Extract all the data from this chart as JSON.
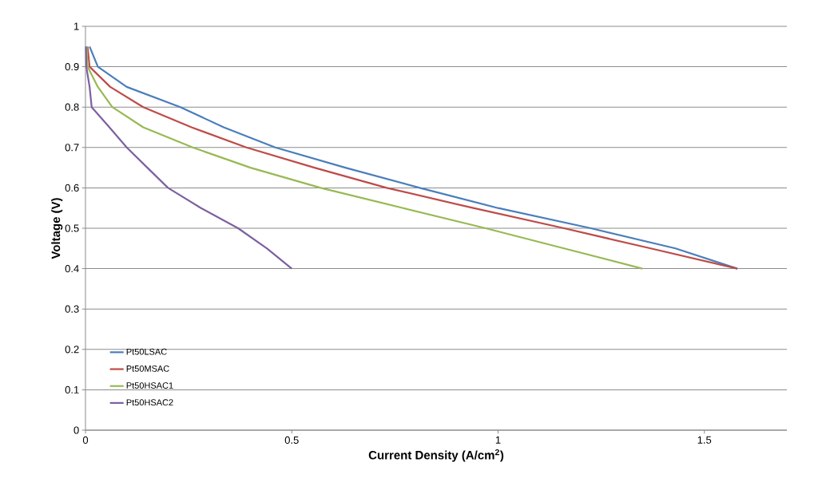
{
  "chart_data": {
    "type": "line",
    "xlabel": "Current Density (A/cm$^{2}$)",
    "ylabel": "Voltage (V)",
    "xlim": [
      0,
      1.7
    ],
    "ylim": [
      0,
      1
    ],
    "xticks": [
      0,
      0.5,
      1,
      1.5
    ],
    "yticks": [
      0,
      0.1,
      0.2,
      0.3,
      0.4,
      0.5,
      0.6,
      0.7,
      0.8,
      0.9,
      1
    ],
    "grid": "y",
    "legend": "bottom left",
    "marker": "none",
    "line_style": "solid",
    "series": [
      {
        "name": "Pt50LSAC",
        "color": "#4a7ebb",
        "x": [
          0.01,
          0.03,
          0.1,
          0.23,
          0.335,
          0.46,
          0.63,
          0.81,
          1.0,
          1.225,
          1.43,
          1.58
        ],
        "values": [
          0.95,
          0.9,
          0.85,
          0.8,
          0.75,
          0.7,
          0.65,
          0.6,
          0.55,
          0.5,
          0.45,
          0.4
        ]
      },
      {
        "name": "Pt50MSAC",
        "color": "#be4b48",
        "x": [
          0.005,
          0.01,
          0.06,
          0.14,
          0.257,
          0.39,
          0.555,
          0.73,
          0.94,
          1.16,
          1.37,
          1.58
        ],
        "values": [
          0.95,
          0.9,
          0.85,
          0.8,
          0.75,
          0.7,
          0.65,
          0.6,
          0.55,
          0.5,
          0.45,
          0.4
        ]
      },
      {
        "name": "Pt50HSAC1",
        "color": "#98b954",
        "x": [
          0.003,
          0.005,
          0.03,
          0.065,
          0.14,
          0.26,
          0.4,
          0.57,
          0.77,
          0.97,
          1.16,
          1.35
        ],
        "values": [
          0.95,
          0.9,
          0.85,
          0.8,
          0.75,
          0.7,
          0.65,
          0.6,
          0.55,
          0.5,
          0.45,
          0.4
        ]
      },
      {
        "name": "Pt50HSAC2",
        "color": "#7d60a0",
        "x": [
          0.001,
          0.002,
          0.01,
          0.015,
          0.058,
          0.1,
          0.15,
          0.2,
          0.28,
          0.37,
          0.44,
          0.5
        ],
        "values": [
          0.95,
          0.9,
          0.85,
          0.8,
          0.75,
          0.7,
          0.65,
          0.6,
          0.55,
          0.5,
          0.45,
          0.4
        ]
      }
    ]
  }
}
